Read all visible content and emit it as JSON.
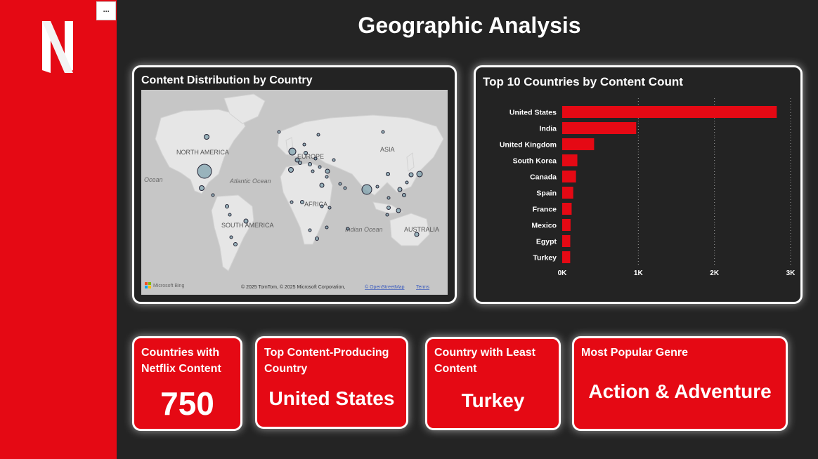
{
  "header": {
    "title": "Geographic Analysis"
  },
  "sidebar": {
    "logo_letter": "N",
    "more_label": "···",
    "brand_color": "#e50914"
  },
  "map": {
    "title": "Content Distribution by Country",
    "labels": {
      "north_america": "NORTH AMERICA",
      "europe": "EUROPE",
      "asia": "ASIA",
      "africa": "AFRICA",
      "south_america": "SOUTH AMERICA",
      "australia": "AUSTRALIA",
      "atlantic": "Atlantic Ocean",
      "indian": "Indian Ocean",
      "ocean_left": "Ocean"
    },
    "attribution": "© 2025 TomTom, © 2025 Microsoft Corporation,",
    "osm_link": "© OpenStreetMap",
    "terms_link": "Terms",
    "bing_label": "Microsoft Bing"
  },
  "chart_data": {
    "type": "bar",
    "orientation": "horizontal",
    "title": "Top 10 Countries by Content Count",
    "categories": [
      "United States",
      "India",
      "United Kingdom",
      "South Korea",
      "Canada",
      "Spain",
      "France",
      "Mexico",
      "Egypt",
      "Turkey"
    ],
    "values": [
      2818,
      972,
      419,
      199,
      181,
      145,
      124,
      110,
      106,
      105
    ],
    "xlim": [
      0,
      3000
    ],
    "xticks": [
      "0K",
      "1K",
      "2K",
      "3K"
    ],
    "bar_color": "#e50914",
    "grid": true
  },
  "kpis": [
    {
      "title": "Countries with Netflix Content",
      "value": "750"
    },
    {
      "title": "Top Content-Producing Country",
      "value": "United States"
    },
    {
      "title": "Country with Least Content",
      "value": "Turkey"
    },
    {
      "title": "Most Popular Genre",
      "value": "Action & Adventure"
    }
  ]
}
